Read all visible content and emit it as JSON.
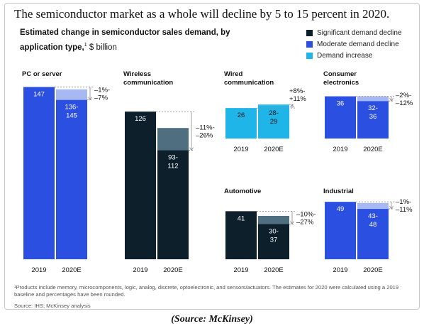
{
  "headline": "The semiconductor market as a whole will decline by 5 to 15 percent in 2020.",
  "subtitle": {
    "main": "Estimated change in semiconductor sales demand, by application type,",
    "footnote_mark": "1",
    "unit": " $ billion"
  },
  "legend": [
    {
      "label": "Significant demand decline",
      "color": "#0c1f2b"
    },
    {
      "label": "Moderate demand decline",
      "color": "#2b4fe0"
    },
    {
      "label": "Demand increase",
      "color": "#1fb5e8"
    }
  ],
  "footnote": "¹Products include memory, microcomponents, logic, analog, discrete, optoelectronic, and sensors/actuators. The estimates for 2020 were calculated using a 2019 baseline and percentages have been rounded.",
  "source": "Source: IHS; McKinsey analysis",
  "caption": "(Source: McKinsey)",
  "chart_data": {
    "type": "bar",
    "categories": [
      "2019",
      "2020E"
    ],
    "panels": [
      {
        "title": [
          "PC or server"
        ],
        "demand": "moderate decline",
        "color": "#2b4fe0",
        "range_color": "#a7b8f2",
        "value_2019": 147,
        "label_2019": "147",
        "range_2020": [
          136,
          145
        ],
        "label_2020": [
          "136-",
          "145"
        ],
        "change": [
          "–1%-",
          "–7%"
        ]
      },
      {
        "title": [
          "Wireless",
          "communication"
        ],
        "demand": "significant decline",
        "color": "#0c1f2b",
        "range_color": "#4f6f80",
        "value_2019": 126,
        "label_2019": "126",
        "range_2020": [
          93,
          112
        ],
        "label_2020": [
          "93-",
          "112"
        ],
        "change": [
          "–11%-",
          "–26%"
        ]
      },
      {
        "title": [
          "Wired",
          "communication"
        ],
        "demand": "increase",
        "color": "#1fb5e8",
        "range_color": "#1fb5e8",
        "value_2019": 26,
        "label_2019": "26",
        "range_2020": [
          28,
          29
        ],
        "label_2020": [
          "28-",
          "29"
        ],
        "change": [
          "+8%-",
          "+11%"
        ]
      },
      {
        "title": [
          "Consumer",
          "electronics"
        ],
        "demand": "moderate decline",
        "color": "#2b4fe0",
        "range_color": "#a7b8f2",
        "value_2019": 36,
        "label_2019": "36",
        "range_2020": [
          32,
          36
        ],
        "label_2020": [
          "32-",
          "36"
        ],
        "change": [
          "–2%-",
          "–12%"
        ]
      },
      {
        "title": [
          "Automotive"
        ],
        "demand": "significant decline",
        "color": "#0c1f2b",
        "range_color": "#4f6f80",
        "value_2019": 41,
        "label_2019": "41",
        "range_2020": [
          30,
          37
        ],
        "label_2020": [
          "30-",
          "37"
        ],
        "change": [
          "–10%-",
          "–27%"
        ]
      },
      {
        "title": [
          "Industrial"
        ],
        "demand": "moderate decline",
        "color": "#2b4fe0",
        "range_color": "#a7b8f2",
        "value_2019": 49,
        "label_2019": "49",
        "range_2020": [
          43,
          48
        ],
        "label_2020": [
          "43-",
          "48"
        ],
        "change": [
          "–1%-",
          "–11%"
        ]
      }
    ]
  }
}
